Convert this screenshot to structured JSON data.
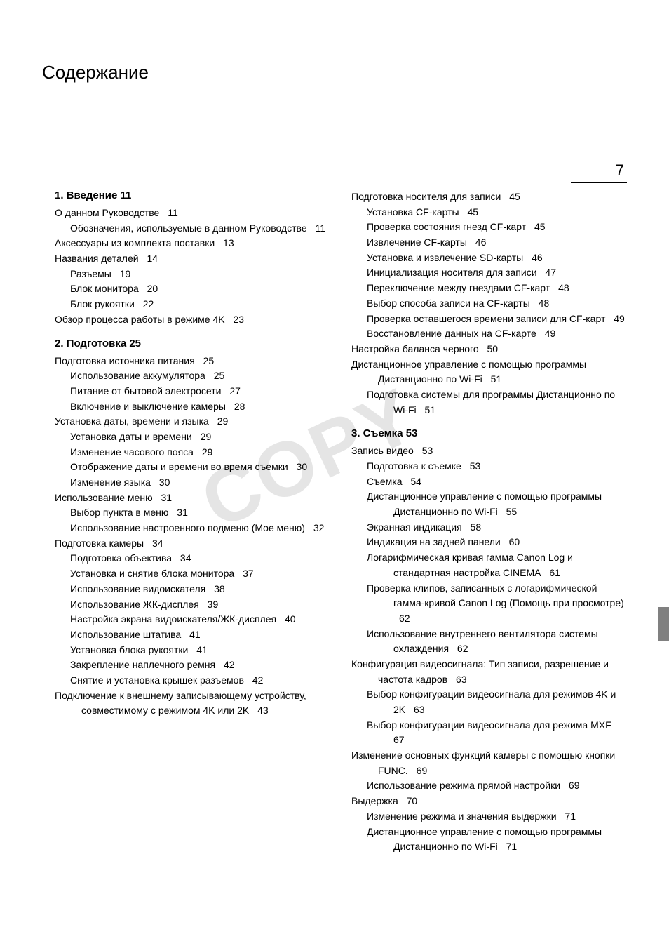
{
  "page_number": "7",
  "main_title": "Содержание",
  "watermark_text": "COPY",
  "colors": {
    "text": "#000000",
    "background": "#ffffff",
    "watermark": "#e5e5e5",
    "side_tab": "#808080"
  },
  "typography": {
    "main_title_fontsize": 26,
    "chapter_heading_fontsize": 15,
    "body_fontsize": 14,
    "page_number_fontsize": 22,
    "font_family": "Arial"
  },
  "col1": [
    {
      "type": "chapter",
      "text": "1. Введение 11"
    },
    {
      "type": "l1",
      "text": "О данном Руководстве",
      "page": "11"
    },
    {
      "type": "l2",
      "text": "Обозначения, используемые в данном Руководстве",
      "page": "11"
    },
    {
      "type": "l1",
      "text": "Аксессуары из комплекта поставки",
      "page": "13"
    },
    {
      "type": "l1",
      "text": "Названия деталей",
      "page": "14"
    },
    {
      "type": "l2",
      "text": "Разъемы",
      "page": "19"
    },
    {
      "type": "l2",
      "text": "Блок монитора",
      "page": "20"
    },
    {
      "type": "l2",
      "text": "Блок рукоятки",
      "page": "22"
    },
    {
      "type": "l1",
      "text": "Обзор процесса работы в режиме 4K",
      "page": "23"
    },
    {
      "type": "chapter",
      "text": "2. Подготовка 25"
    },
    {
      "type": "l1",
      "text": "Подготовка источника питания",
      "page": "25"
    },
    {
      "type": "l2",
      "text": "Использование аккумулятора",
      "page": "25"
    },
    {
      "type": "l2",
      "text": "Питание от бытовой электросети",
      "page": "27"
    },
    {
      "type": "l2",
      "text": "Включение и выключение камеры",
      "page": "28"
    },
    {
      "type": "l1",
      "text": "Установка даты, времени и языка",
      "page": "29"
    },
    {
      "type": "l2",
      "text": "Установка даты и времени",
      "page": "29"
    },
    {
      "type": "l2",
      "text": "Изменение часового пояса",
      "page": "29"
    },
    {
      "type": "l2",
      "text": "Отображение даты и времени во время съемки",
      "page": "30"
    },
    {
      "type": "l2",
      "text": "Изменение языка",
      "page": "30"
    },
    {
      "type": "l1",
      "text": "Использование меню",
      "page": "31"
    },
    {
      "type": "l2",
      "text": "Выбор пункта в меню",
      "page": "31"
    },
    {
      "type": "l2",
      "text": "Использование настроенного подменю (Мое меню)",
      "page": "32"
    },
    {
      "type": "l1",
      "text": "Подготовка камеры",
      "page": "34"
    },
    {
      "type": "l2",
      "text": "Подготовка объектива",
      "page": "34"
    },
    {
      "type": "l2",
      "text": "Установка и снятие блока монитора",
      "page": "37"
    },
    {
      "type": "l2",
      "text": "Использование видоискателя",
      "page": "38"
    },
    {
      "type": "l2",
      "text": "Использование ЖК-дисплея",
      "page": "39"
    },
    {
      "type": "l2",
      "text": "Настройка экрана видоискателя/ЖК-дисплея",
      "page": "40"
    },
    {
      "type": "l2",
      "text": "Использование штатива",
      "page": "41"
    },
    {
      "type": "l2",
      "text": "Установка блока рукоятки",
      "page": "41"
    },
    {
      "type": "l2",
      "text": "Закрепление наплечного ремня",
      "page": "42"
    },
    {
      "type": "l2",
      "text": "Снятие и установка крышек разъемов",
      "page": "42"
    },
    {
      "type": "l1",
      "text": "Подключение к внешнему записывающему устройству, совместимому с режимом 4K или 2K",
      "page": "43"
    }
  ],
  "col2": [
    {
      "type": "l1",
      "text": "Подготовка носителя для записи",
      "page": "45"
    },
    {
      "type": "l2",
      "text": "Установка CF-карты",
      "page": "45"
    },
    {
      "type": "l2",
      "text": "Проверка состояния гнезд CF-карт",
      "page": "45"
    },
    {
      "type": "l2",
      "text": "Извлечение CF-карты",
      "page": "46"
    },
    {
      "type": "l2",
      "text": "Установка и извлечение SD-карты",
      "page": "46"
    },
    {
      "type": "l2",
      "text": "Инициализация носителя для записи",
      "page": "47"
    },
    {
      "type": "l2",
      "text": "Переключение между гнездами CF-карт",
      "page": "48"
    },
    {
      "type": "l2",
      "text": "Выбор способа записи на CF-карты",
      "page": "48"
    },
    {
      "type": "l2",
      "text": "Проверка оставшегося времени записи для CF-карт",
      "page": "49"
    },
    {
      "type": "l2",
      "text": "Восстановление данных на CF-карте",
      "page": "49"
    },
    {
      "type": "l1",
      "text": "Настройка баланса черного",
      "page": "50"
    },
    {
      "type": "l1",
      "text": "Дистанционное управление с помощью программы Дистанционно по Wi-Fi",
      "page": "51"
    },
    {
      "type": "l2",
      "text": "Подготовка системы для программы Дистанционно по Wi-Fi",
      "page": "51"
    },
    {
      "type": "chapter",
      "text": "3. Съемка 53"
    },
    {
      "type": "l1",
      "text": "Запись видео",
      "page": "53"
    },
    {
      "type": "l2",
      "text": "Подготовка к съемке",
      "page": "53"
    },
    {
      "type": "l2",
      "text": "Съемка",
      "page": "54"
    },
    {
      "type": "l2",
      "text": "Дистанционное управление с помощью программы Дистанционно по Wi-Fi",
      "page": "55"
    },
    {
      "type": "l2",
      "text": "Экранная индикация",
      "page": "58"
    },
    {
      "type": "l2",
      "text": "Индикация на задней панели",
      "page": "60"
    },
    {
      "type": "l2",
      "text": "Логарифмическая кривая гамма Canon Log и стандартная настройка CINEMA",
      "page": "61"
    },
    {
      "type": "l2",
      "text": "Проверка клипов, записанных с логарифмической гамма-кривой Canon Log (Помощь при просмотре)",
      "page": "62"
    },
    {
      "type": "l2",
      "text": "Использование внутреннего вентилятора системы охлаждения",
      "page": "62"
    },
    {
      "type": "l1",
      "text": "Конфигурация видеосигнала: Тип записи, разрешение и частота кадров",
      "page": "63"
    },
    {
      "type": "l2",
      "text": "Выбор конфигурации видеосигнала для режимов 4K и 2K",
      "page": "63"
    },
    {
      "type": "l2",
      "text": "Выбор конфигурации видеосигнала для режима MXF",
      "page": "67"
    },
    {
      "type": "l1",
      "text": "Изменение основных функций камеры с помощью кнопки FUNC.",
      "page": "69"
    },
    {
      "type": "l2",
      "text": "Использование режима прямой настройки",
      "page": "69"
    },
    {
      "type": "l1",
      "text": "Выдержка",
      "page": "70"
    },
    {
      "type": "l2",
      "text": "Изменение режима и значения выдержки",
      "page": "71"
    },
    {
      "type": "l2",
      "text": "Дистанционное управление с помощью программы Дистанционно по Wi-Fi",
      "page": "71"
    }
  ]
}
